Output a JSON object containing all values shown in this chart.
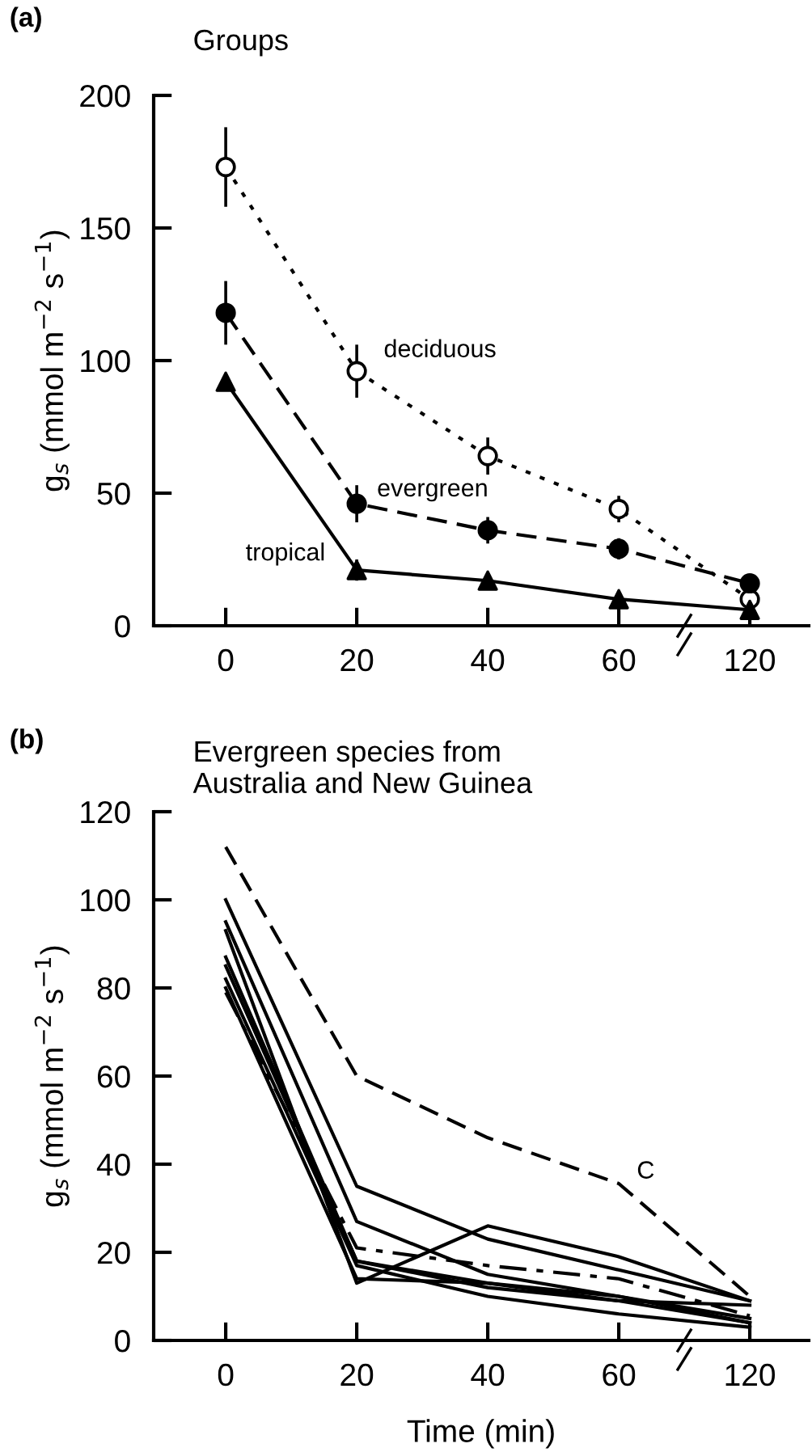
{
  "chart_data": [
    {
      "type": "line",
      "title": "Groups",
      "ylabel": "g$_{s}$ (mmol m$^{−2}$ s$^{−1}$)",
      "annotations": [
        "(a)"
      ],
      "categories": [
        "0",
        "20",
        "40",
        "60",
        "120"
      ],
      "ylim": [
        0,
        200
      ],
      "yticks": [
        0,
        50,
        100,
        150,
        200
      ],
      "grid": false,
      "legend": false,
      "series": [
        {
          "name": "deciduous",
          "color": "#000000",
          "marker": "circle",
          "colors": [
            "#ffffff",
            "#ffffff",
            "#ffffff",
            "#ffffff",
            "#ffffff"
          ],
          "line_style": "dotted",
          "values": [
            173,
            96,
            64,
            44,
            10
          ],
          "errors": [
            15,
            10,
            7,
            5,
            2
          ]
        },
        {
          "name": "evergreen",
          "color": "#000000",
          "marker": "circle",
          "line_style": "dashed",
          "values": [
            118,
            46,
            36,
            29,
            16
          ],
          "errors": [
            12,
            7,
            5,
            4,
            3
          ]
        },
        {
          "name": "tropical",
          "color": "#000000",
          "marker": "triangle",
          "line_style": "solid",
          "values": [
            92,
            21,
            17,
            10,
            6
          ],
          "errors": [
            3,
            4,
            3,
            2,
            2
          ]
        }
      ]
    },
    {
      "type": "line",
      "title": "Evergreen species from\nAustralia and New Guinea",
      "ylabel": "g$_{s}$ (mmol m$^{−2}$ s$^{−1}$)",
      "xlabel": "Time (min)",
      "annotations": [
        "(b)"
      ],
      "categories": [
        "0",
        "20",
        "40",
        "60",
        "120"
      ],
      "ylim": [
        0,
        120
      ],
      "yticks": [
        0,
        20,
        40,
        60,
        80,
        100,
        120
      ],
      "grid": false,
      "legend": false,
      "series": [
        {
          "name": "C",
          "color": "#000000",
          "line_style": "dashed",
          "values": [
            112,
            60,
            46,
            35.6,
            10
          ]
        },
        {
          "color": "#000000",
          "line_style": "dashdot",
          "values": [
            79,
            21,
            17,
            14,
            5.6
          ]
        },
        {
          "color": "#000000",
          "line_style": "solid",
          "values": [
            100,
            35,
            23,
            16,
            9
          ]
        },
        {
          "color": "#000000",
          "line_style": "solid",
          "values": [
            95,
            27,
            15,
            10,
            4
          ]
        },
        {
          "color": "#000000",
          "line_style": "solid",
          "values": [
            93,
            13,
            26,
            19,
            9
          ]
        },
        {
          "color": "#000000",
          "line_style": "solid",
          "values": [
            87,
            18,
            13,
            10,
            5
          ]
        },
        {
          "color": "#000000",
          "line_style": "solid",
          "values": [
            85,
            18,
            12,
            9,
            4
          ]
        },
        {
          "color": "#000000",
          "line_style": "solid",
          "values": [
            82,
            17,
            10,
            6,
            3
          ]
        },
        {
          "color": "#000000",
          "line_style": "solid",
          "values": [
            80,
            14,
            13,
            9,
            8
          ]
        }
      ]
    }
  ]
}
